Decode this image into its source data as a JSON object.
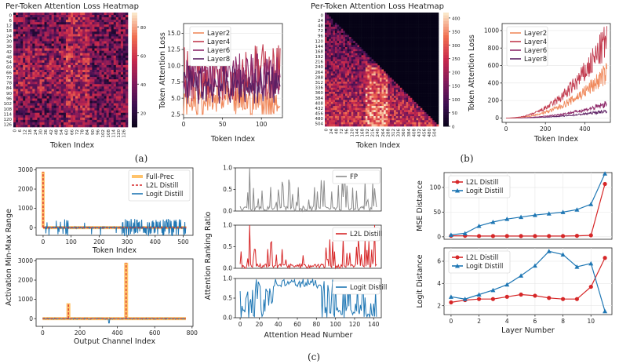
{
  "panel_labels": {
    "a": "(a)",
    "b": "(b)",
    "c": "(c)"
  },
  "colors": {
    "layer2": "#f08a5d",
    "layer4": "#c23b4f",
    "layer6": "#8e2a6b",
    "layer8": "#5b1f63",
    "full_prec": "#ffc36b",
    "l2l": "#d62728",
    "logit": "#1f77b4",
    "fp_gray": "#8c8c8c"
  },
  "chart_data": [
    {
      "type": "heatmap",
      "id": "a-heatmap",
      "title": "Per-Token Attention Loss Heatmap",
      "xlabel": "Token Index",
      "x_ticks": [
        "0",
        "6",
        "12",
        "18",
        "24",
        "30",
        "36",
        "42",
        "48",
        "54",
        "60",
        "66",
        "72",
        "78",
        "84",
        "90",
        "96",
        "102",
        "108",
        "114",
        "120",
        "126"
      ],
      "y_ticks": [
        "0",
        "6",
        "12",
        "18",
        "24",
        "30",
        "36",
        "42",
        "48",
        "54",
        "60",
        "66",
        "72",
        "78",
        "84",
        "90",
        "96",
        "102",
        "108",
        "114",
        "120",
        "126"
      ],
      "colorbar_ticks": [
        "80",
        "60",
        "40",
        "20"
      ],
      "vrange": [
        10,
        90
      ]
    },
    {
      "type": "line",
      "id": "a-line",
      "xlabel": "Token Index",
      "ylabel": "Token Attention Loss",
      "x_ticks": [
        "0",
        "50",
        "100"
      ],
      "y_ticks": [
        "2.5",
        "5.0",
        "7.5",
        "10.0",
        "12.5",
        "15.0"
      ],
      "xlim": [
        0,
        127
      ],
      "ylim": [
        2,
        16.5
      ],
      "series": [
        {
          "name": "Layer2",
          "base": 4.5,
          "amp": 2.5
        },
        {
          "name": "Layer4",
          "base": 9.0,
          "amp": 4.5
        },
        {
          "name": "Layer6",
          "base": 8.5,
          "amp": 3.5
        },
        {
          "name": "Layer8",
          "base": 7.0,
          "amp": 3.0
        }
      ]
    },
    {
      "type": "heatmap",
      "id": "b-heatmap",
      "title": "Per-Token Attention Loss Heatmap",
      "xlabel": "Token Index",
      "x_ticks": [
        "0",
        "24",
        "48",
        "72",
        "96",
        "120",
        "144",
        "168",
        "192",
        "216",
        "240",
        "264",
        "288",
        "312",
        "336",
        "360",
        "384",
        "408",
        "432",
        "456",
        "480",
        "504"
      ],
      "y_ticks": [
        "0",
        "24",
        "48",
        "72",
        "96",
        "120",
        "144",
        "168",
        "192",
        "216",
        "240",
        "264",
        "288",
        "312",
        "336",
        "360",
        "384",
        "408",
        "432",
        "456",
        "480",
        "504"
      ],
      "colorbar_ticks": [
        "400",
        "350",
        "300",
        "250",
        "200",
        "150",
        "100",
        "50",
        "0"
      ],
      "vrange": [
        0,
        420
      ]
    },
    {
      "type": "line",
      "id": "b-line",
      "xlabel": "Token Index",
      "ylabel": "Token Attention Loss",
      "x_ticks": [
        "0",
        "200",
        "400"
      ],
      "y_ticks": [
        "0",
        "200",
        "400",
        "600",
        "800",
        "1000"
      ],
      "xlim": [
        -20,
        530
      ],
      "ylim": [
        -50,
        1080
      ],
      "series": [
        {
          "name": "Layer2",
          "end": 520
        },
        {
          "name": "Layer4",
          "end": 900
        },
        {
          "name": "Layer6",
          "end": 160
        },
        {
          "name": "Layer8",
          "end": 80
        }
      ]
    },
    {
      "type": "line",
      "id": "c-token-range",
      "xlabel": "Token Index",
      "ylabel": "Activation Min-Max Range",
      "x_ticks": [
        "0",
        "100",
        "200",
        "300",
        "400",
        "500"
      ],
      "y_ticks": [
        "0",
        "1000",
        "2000",
        "3000"
      ],
      "xlim": [
        -25,
        535
      ],
      "ylim": [
        -400,
        3100
      ],
      "series": [
        {
          "name": "Full-Prec",
          "spike_at": 0,
          "spike": 2900
        },
        {
          "name": "L2L Distill",
          "spike_at": 0,
          "spike": 2900
        },
        {
          "name": "Logit Distill",
          "noise": 450
        }
      ]
    },
    {
      "type": "line",
      "id": "c-channel-range",
      "xlabel": "Output Channel Index",
      "ylabel": "Activation Min-Max Range",
      "x_ticks": [
        "0",
        "200",
        "400",
        "600",
        "800"
      ],
      "y_ticks": [
        "0",
        "1000",
        "2000",
        "3000"
      ],
      "xlim": [
        -35,
        805
      ],
      "ylim": [
        -400,
        3100
      ],
      "spikes": [
        {
          "x": 138,
          "y": 800
        },
        {
          "x": 447,
          "y": 2900
        }
      ]
    },
    {
      "type": "line",
      "id": "c-ranking",
      "xlabel": "Attention Head Number",
      "ylabel": "Attention  Ranking Ratio",
      "x_ticks": [
        "0",
        "20",
        "40",
        "60",
        "80",
        "100",
        "120",
        "140"
      ],
      "y_ticks": [
        "0.0",
        "0.5",
        "1.0"
      ],
      "xlim": [
        -5,
        148
      ],
      "ylim": [
        0,
        1
      ],
      "series": [
        {
          "name": "FP"
        },
        {
          "name": "L2L Distill"
        },
        {
          "name": "Logit Distill"
        }
      ]
    },
    {
      "type": "line",
      "id": "c-mse",
      "ylabel": "MSE Distance",
      "x": [
        0,
        1,
        2,
        3,
        4,
        5,
        6,
        7,
        8,
        9,
        10,
        11
      ],
      "y_ticks": [
        "0",
        "50",
        "100"
      ],
      "ylim": [
        -5,
        130
      ],
      "series": [
        {
          "name": "L2L Distill",
          "values": [
            2,
            2,
            1.5,
            1.5,
            1.5,
            1.5,
            1.5,
            1.5,
            1.5,
            2,
            3,
            107
          ]
        },
        {
          "name": "Logit Distill",
          "values": [
            4,
            7,
            22,
            30,
            36,
            40,
            44,
            47,
            50,
            55,
            66,
            128
          ]
        }
      ]
    },
    {
      "type": "line",
      "id": "c-logit",
      "xlabel": "Layer Number",
      "ylabel": "Logit Distance",
      "x": [
        0,
        1,
        2,
        3,
        4,
        5,
        6,
        7,
        8,
        9,
        10,
        11
      ],
      "x_ticks": [
        "0",
        "2",
        "4",
        "6",
        "8",
        "10"
      ],
      "y_ticks": [
        "2",
        "4",
        "6"
      ],
      "ylim": [
        1.2,
        7.2
      ],
      "series": [
        {
          "name": "L2L Distill",
          "values": [
            2.3,
            2.5,
            2.6,
            2.6,
            2.8,
            3.0,
            2.9,
            2.7,
            2.6,
            2.6,
            3.7,
            6.3
          ]
        },
        {
          "name": "Logit Distill",
          "values": [
            2.8,
            2.6,
            3.0,
            3.4,
            3.9,
            4.7,
            5.6,
            6.9,
            6.6,
            5.5,
            5.8,
            1.5
          ]
        }
      ]
    }
  ]
}
